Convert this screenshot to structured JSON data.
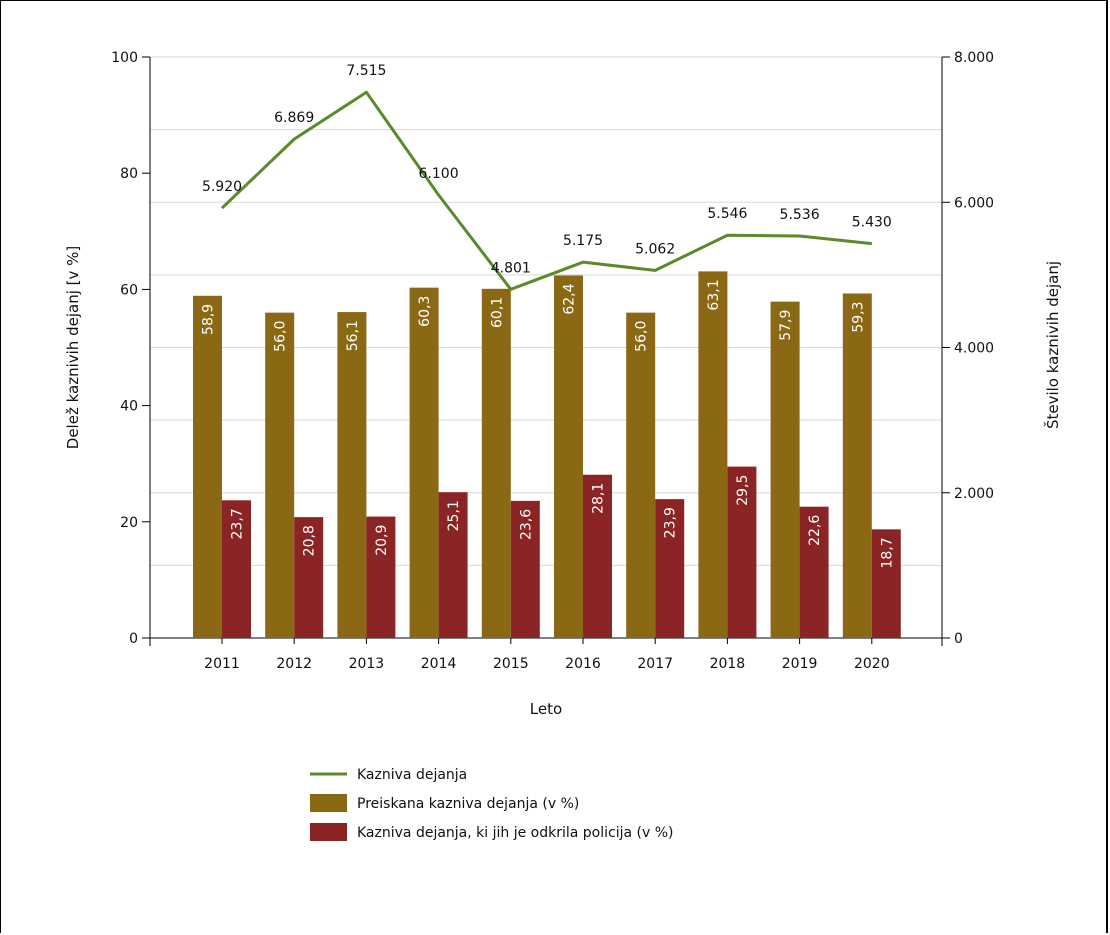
{
  "chart_data": {
    "type": "bar",
    "categories": [
      "2011",
      "2012",
      "2013",
      "2014",
      "2015",
      "2016",
      "2017",
      "2018",
      "2019",
      "2020"
    ],
    "xlabel": "Leto",
    "ylabel_left": "Delež kaznivih dejanj [v %]",
    "ylabel_right": "Število kaznivih dejanj",
    "ylim_left": [
      0,
      100
    ],
    "ylim_right": [
      0,
      8000
    ],
    "yticks_left": [
      "0",
      "20",
      "40",
      "60",
      "80",
      "100"
    ],
    "yticks_right": [
      "0",
      "2.000",
      "4.000",
      "6.000",
      "8.000"
    ],
    "grid": true,
    "legend_position": "bottom",
    "series": [
      {
        "name": "Preiskana kazniva dejanja (v %)",
        "type": "bar",
        "axis": "left",
        "color": "#8b6914",
        "values": [
          58.9,
          56.0,
          56.1,
          60.3,
          60.1,
          62.4,
          56.0,
          63.1,
          57.9,
          59.3
        ],
        "labels": [
          "58,9",
          "56,0",
          "56,1",
          "60,3",
          "60,1",
          "62,4",
          "56,0",
          "63,1",
          "57,9",
          "59,3"
        ]
      },
      {
        "name": "Kazniva dejanja, ki jih je odkrila policija (v %)",
        "type": "bar",
        "axis": "left",
        "color": "#8b2424",
        "values": [
          23.7,
          20.8,
          20.9,
          25.1,
          23.6,
          28.1,
          23.9,
          29.5,
          22.6,
          18.7
        ],
        "labels": [
          "23,7",
          "20,8",
          "20,9",
          "25,1",
          "23,6",
          "28,1",
          "23,9",
          "29,5",
          "22,6",
          "18,7"
        ]
      },
      {
        "name": "Kazniva dejanja",
        "type": "line",
        "axis": "right",
        "color": "#5a8a2a",
        "values": [
          5920,
          6869,
          7515,
          6100,
          4801,
          5175,
          5062,
          5546,
          5536,
          5430
        ],
        "labels": [
          "5.920",
          "6.869",
          "7.515",
          "6.100",
          "4.801",
          "5.175",
          "5.062",
          "5.546",
          "5.536",
          "5.430"
        ]
      }
    ],
    "legend_order": [
      2,
      0,
      1
    ]
  }
}
